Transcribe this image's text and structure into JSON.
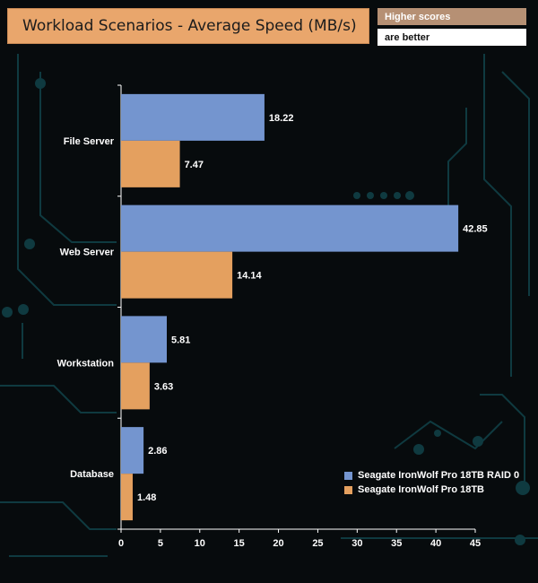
{
  "header": {
    "title": "Workload Scenarios - Average Speed (MB/s)",
    "note_line1": "Higher scores",
    "note_line2": "are better"
  },
  "chart_data": {
    "type": "bar",
    "orientation": "horizontal",
    "title": "Workload Scenarios - Average Speed (MB/s)",
    "xlabel": "",
    "ylabel": "",
    "categories": [
      "File Server",
      "Web Server",
      "Workstation",
      "Database"
    ],
    "series": [
      {
        "name": "Seagate IronWolf Pro 18TB RAID 0",
        "color": "#7495cf",
        "values": [
          18.22,
          42.85,
          5.81,
          2.86
        ]
      },
      {
        "name": "Seagate IronWolf Pro 18TB",
        "color": "#e4a05f",
        "values": [
          7.47,
          14.14,
          3.63,
          1.48
        ]
      }
    ],
    "xlim": [
      0,
      45
    ],
    "xticks": [
      0,
      5,
      10,
      15,
      20,
      25,
      30,
      35,
      40,
      45
    ],
    "legend_position": "bottom-right",
    "grid": false
  }
}
